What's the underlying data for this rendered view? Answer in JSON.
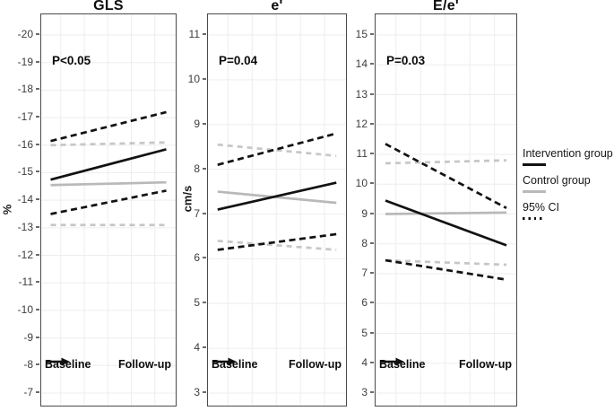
{
  "colors": {
    "black": "#121212",
    "gray_solid": "#b9b9b9",
    "gray_dashed": "#c6c6c6",
    "grid": "#ededed",
    "border": "#4a4a4a",
    "tick_text": "#3d3d3d"
  },
  "legend": {
    "position": "right",
    "items": [
      {
        "label": "Intervention group",
        "swatch": "solid-black"
      },
      {
        "label": "Control group",
        "swatch": "solid-gray"
      },
      {
        "label": "95% CI",
        "swatch": "dotted-black"
      }
    ]
  },
  "chart_data": [
    {
      "type": "line",
      "title": "GLS",
      "p_label": "P<0.05",
      "ylabel": "%",
      "x_labels": [
        "Baseline",
        "Follow-up"
      ],
      "ylim": [
        -20,
        -7
      ],
      "yticks": [
        -20,
        -19,
        -18,
        -17,
        -16,
        -15,
        -14,
        -13,
        -12,
        -11,
        -10,
        -9,
        -8,
        -7
      ],
      "grid": true,
      "series": [
        {
          "name": "control-ci-upper",
          "group": "control",
          "style": "dashed",
          "values": [
            -16.0,
            -16.1
          ]
        },
        {
          "name": "control-ci-lower",
          "group": "control",
          "style": "dashed",
          "values": [
            -13.1,
            -13.1
          ]
        },
        {
          "name": "control-group",
          "group": "control",
          "style": "solid",
          "values": [
            -14.55,
            -14.65
          ]
        },
        {
          "name": "intervention-ci-upper",
          "group": "intervention",
          "style": "dashed",
          "values": [
            -16.15,
            -17.2
          ]
        },
        {
          "name": "intervention-ci-lower",
          "group": "intervention",
          "style": "dashed",
          "values": [
            -13.5,
            -14.35
          ]
        },
        {
          "name": "intervention-group",
          "group": "intervention",
          "style": "solid",
          "values": [
            -14.75,
            -15.85
          ]
        }
      ]
    },
    {
      "type": "line",
      "title": "e'",
      "p_label": "P=0.04",
      "ylabel": "cm/s",
      "x_labels": [
        "Baseline",
        "Follow-up"
      ],
      "ylim": [
        11,
        3
      ],
      "yticks": [
        11,
        10,
        9,
        8,
        7,
        6,
        5,
        4,
        3
      ],
      "grid": true,
      "series": [
        {
          "name": "control-ci-upper",
          "group": "control",
          "style": "dashed",
          "values": [
            8.55,
            8.3
          ]
        },
        {
          "name": "control-ci-lower",
          "group": "control",
          "style": "dashed",
          "values": [
            6.4,
            6.2
          ]
        },
        {
          "name": "control-group",
          "group": "control",
          "style": "solid",
          "values": [
            7.5,
            7.25
          ]
        },
        {
          "name": "intervention-ci-upper",
          "group": "intervention",
          "style": "dashed",
          "values": [
            8.1,
            8.8
          ]
        },
        {
          "name": "intervention-ci-lower",
          "group": "intervention",
          "style": "dashed",
          "values": [
            6.2,
            6.55
          ]
        },
        {
          "name": "intervention-group",
          "group": "intervention",
          "style": "solid",
          "values": [
            7.1,
            7.7
          ]
        }
      ]
    },
    {
      "type": "line",
      "title": "E/e'",
      "p_label": "P=0.03",
      "ylabel": "",
      "x_labels": [
        "Baseline",
        "Follow-up"
      ],
      "ylim": [
        15,
        3
      ],
      "yticks": [
        15,
        14,
        13,
        12,
        11,
        10,
        9,
        8,
        7,
        6,
        5,
        4,
        3
      ],
      "grid": true,
      "series": [
        {
          "name": "control-ci-upper",
          "group": "control",
          "style": "dashed",
          "values": [
            10.7,
            10.8
          ]
        },
        {
          "name": "control-ci-lower",
          "group": "control",
          "style": "dashed",
          "values": [
            7.45,
            7.3
          ]
        },
        {
          "name": "control-group",
          "group": "control",
          "style": "solid",
          "values": [
            9.0,
            9.05
          ]
        },
        {
          "name": "intervention-ci-upper",
          "group": "intervention",
          "style": "dashed",
          "values": [
            11.35,
            9.2
          ]
        },
        {
          "name": "intervention-ci-lower",
          "group": "intervention",
          "style": "dashed",
          "values": [
            7.45,
            6.8
          ]
        },
        {
          "name": "intervention-group",
          "group": "intervention",
          "style": "solid",
          "values": [
            9.45,
            7.95
          ]
        }
      ]
    }
  ]
}
